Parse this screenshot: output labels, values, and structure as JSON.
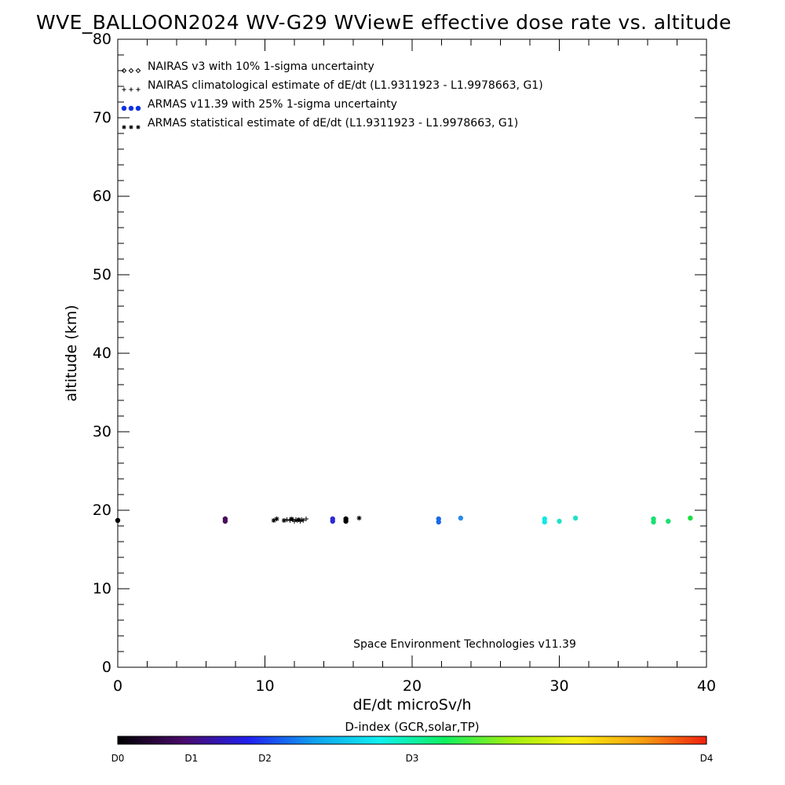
{
  "chart_data": {
    "type": "scatter",
    "title": "WVE_BALLOON2024 WV-G29 WViewE effective dose rate vs. altitude",
    "xlabel": "dE/dt microSv/h",
    "ylabel": "altitude (km)",
    "xlim": [
      0,
      40
    ],
    "ylim": [
      0,
      80
    ],
    "x_ticks": [
      "0",
      "10",
      "20",
      "30",
      "40"
    ],
    "y_ticks": [
      "0",
      "10",
      "20",
      "30",
      "40",
      "50",
      "60",
      "70",
      "80"
    ],
    "grid": false,
    "legend_position": "top-left",
    "legend": [
      {
        "symbol": "diamond",
        "label": "NAIRAS v3 with 10% 1-sigma uncertainty",
        "color": "#000000"
      },
      {
        "symbol": "plus",
        "label": "NAIRAS climatological estimate of dE/dt (L1.9311923 - L1.9978663, G1)",
        "color": "#000000"
      },
      {
        "symbol": "dot",
        "label": "ARMAS v11.39 with 25% 1-sigma uncertainty",
        "color": "#1030e0"
      },
      {
        "symbol": "asterisk",
        "label": "ARMAS statistical estimate of dE/dt (L1.9311923 - L1.9978663, G1)",
        "color": "#000000"
      }
    ],
    "annotation": "Space Environment Technologies v11.39",
    "series": [
      {
        "name": "ARMAS v11.39 with 25% 1-sigma uncertainty",
        "marker": "dot",
        "points": [
          {
            "x": 0.0,
            "y": 18.7,
            "color": "#000000"
          },
          {
            "x": 7.3,
            "y": 18.6,
            "color": "#4a0a5a"
          },
          {
            "x": 7.3,
            "y": 18.9,
            "color": "#4a0a5a"
          },
          {
            "x": 14.6,
            "y": 18.6,
            "color": "#2a2ad8"
          },
          {
            "x": 14.6,
            "y": 18.9,
            "color": "#2a2ad8"
          },
          {
            "x": 15.5,
            "y": 18.6,
            "color": "#000000"
          },
          {
            "x": 15.5,
            "y": 18.9,
            "color": "#000000"
          },
          {
            "x": 21.8,
            "y": 18.5,
            "color": "#1a6ae8"
          },
          {
            "x": 21.8,
            "y": 18.9,
            "color": "#1a6ae8"
          },
          {
            "x": 23.3,
            "y": 19.0,
            "color": "#2a8ae8"
          },
          {
            "x": 29.0,
            "y": 18.5,
            "color": "#10e8e8"
          },
          {
            "x": 29.0,
            "y": 18.9,
            "color": "#10e8e8"
          },
          {
            "x": 30.0,
            "y": 18.6,
            "color": "#20e0c8"
          },
          {
            "x": 31.1,
            "y": 19.0,
            "color": "#20e0c8"
          },
          {
            "x": 36.4,
            "y": 18.5,
            "color": "#18e070"
          },
          {
            "x": 36.4,
            "y": 18.9,
            "color": "#18e070"
          },
          {
            "x": 37.4,
            "y": 18.6,
            "color": "#18e070"
          },
          {
            "x": 38.9,
            "y": 19.0,
            "color": "#18e040"
          }
        ]
      },
      {
        "name": "NAIRAS climatological estimate of dE/dt (L1.9311923 - L1.9978663, G1)",
        "marker": "plus",
        "points": [
          {
            "x": 11.5,
            "y": 18.8
          },
          {
            "x": 11.7,
            "y": 18.7
          },
          {
            "x": 11.9,
            "y": 18.8
          },
          {
            "x": 12.0,
            "y": 18.6
          },
          {
            "x": 12.1,
            "y": 18.8
          },
          {
            "x": 12.2,
            "y": 18.7
          },
          {
            "x": 12.4,
            "y": 18.6
          },
          {
            "x": 12.5,
            "y": 18.8
          },
          {
            "x": 12.6,
            "y": 18.7
          },
          {
            "x": 12.8,
            "y": 18.9
          }
        ]
      },
      {
        "name": "ARMAS statistical estimate of dE/dt (L1.9311923 - L1.9978663, G1)",
        "marker": "asterisk",
        "points": [
          {
            "x": 10.6,
            "y": 18.7
          },
          {
            "x": 10.8,
            "y": 18.9
          },
          {
            "x": 11.3,
            "y": 18.7
          },
          {
            "x": 11.8,
            "y": 18.9
          },
          {
            "x": 12.3,
            "y": 18.8
          },
          {
            "x": 16.4,
            "y": 19.0
          }
        ]
      }
    ],
    "colorbar": {
      "title": "D-index (GCR,solar,TP)",
      "labels": [
        {
          "text": "D0",
          "pos": 0.0
        },
        {
          "text": "D1",
          "pos": 0.125
        },
        {
          "text": "D2",
          "pos": 0.25
        },
        {
          "text": "D3",
          "pos": 0.5
        },
        {
          "text": "D4",
          "pos": 1.0
        }
      ],
      "gradient": [
        "#000000",
        "#4a0a6a",
        "#2020f0",
        "#10a0f0",
        "#10f0f0",
        "#10f060",
        "#a0f010",
        "#f8f010",
        "#f8a010",
        "#f02010"
      ]
    }
  }
}
